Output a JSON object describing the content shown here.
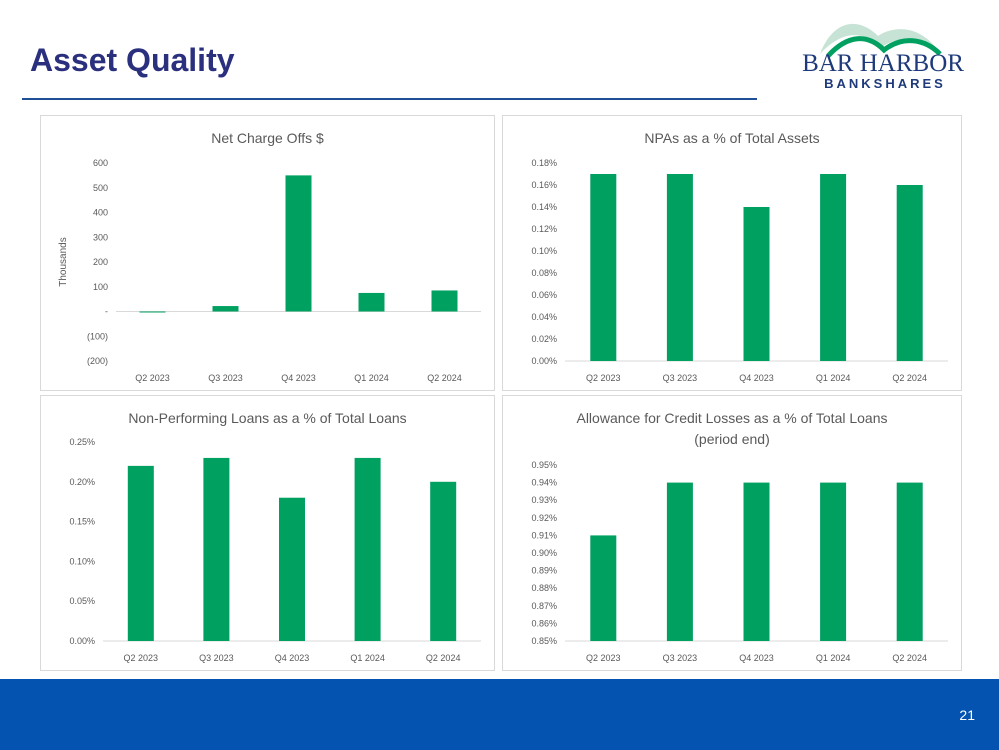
{
  "slide": {
    "title": "Asset Quality",
    "page_number": "21",
    "logo": {
      "line1": "BAR HARBOR",
      "line2": "BANKSHARES"
    }
  },
  "colors": {
    "bar": "#00a060",
    "title": "#2a2f7e",
    "footer": "#0553b1",
    "axis": "#d9d9d9",
    "text": "#595959"
  },
  "chart_data": [
    {
      "type": "bar",
      "title": [
        "Net Charge Offs $"
      ],
      "ylabel": "Thousands",
      "categories": [
        "Q2 2023",
        "Q3 2023",
        "Q4 2023",
        "Q1 2024",
        "Q2 2024"
      ],
      "values": [
        -3,
        22,
        550,
        75,
        85
      ],
      "ylim": [
        -200,
        600
      ],
      "ticks": [
        600,
        500,
        400,
        300,
        200,
        100,
        0,
        -100,
        -200
      ],
      "tick_labels": [
        "600",
        "500",
        "400",
        "300",
        "200",
        "100",
        "-",
        "(100)",
        "(200)"
      ]
    },
    {
      "type": "bar",
      "title": [
        "NPAs as a % of Total Assets"
      ],
      "categories": [
        "Q2 2023",
        "Q3 2023",
        "Q4 2023",
        "Q1 2024",
        "Q2 2024"
      ],
      "values": [
        0.17,
        0.17,
        0.14,
        0.17,
        0.16
      ],
      "ylim": [
        0,
        0.18
      ],
      "ticks": [
        0.18,
        0.16,
        0.14,
        0.12,
        0.1,
        0.08,
        0.06,
        0.04,
        0.02,
        0.0
      ],
      "tick_labels": [
        "0.18%",
        "0.16%",
        "0.14%",
        "0.12%",
        "0.10%",
        "0.08%",
        "0.06%",
        "0.04%",
        "0.02%",
        "0.00%"
      ]
    },
    {
      "type": "bar",
      "title": [
        "Non-Performing Loans as a % of Total Loans"
      ],
      "categories": [
        "Q2 2023",
        "Q3 2023",
        "Q4 2023",
        "Q1 2024",
        "Q2 2024"
      ],
      "values": [
        0.22,
        0.23,
        0.18,
        0.23,
        0.2
      ],
      "ylim": [
        0,
        0.25
      ],
      "ticks": [
        0.25,
        0.2,
        0.15,
        0.1,
        0.05,
        0.0
      ],
      "tick_labels": [
        "0.25%",
        "0.20%",
        "0.15%",
        "0.10%",
        "0.05%",
        "0.00%"
      ]
    },
    {
      "type": "bar",
      "title": [
        "Allowance for Credit Losses as a % of Total Loans",
        "(period end)"
      ],
      "categories": [
        "Q2 2023",
        "Q3 2023",
        "Q4 2023",
        "Q1 2024",
        "Q2 2024"
      ],
      "values": [
        0.91,
        0.94,
        0.94,
        0.94,
        0.94
      ],
      "ylim": [
        0.85,
        0.95
      ],
      "ticks": [
        0.95,
        0.94,
        0.93,
        0.92,
        0.91,
        0.9,
        0.89,
        0.88,
        0.87,
        0.86,
        0.85
      ],
      "tick_labels": [
        "0.95%",
        "0.94%",
        "0.93%",
        "0.92%",
        "0.91%",
        "0.90%",
        "0.89%",
        "0.88%",
        "0.87%",
        "0.86%",
        "0.85%"
      ]
    }
  ]
}
